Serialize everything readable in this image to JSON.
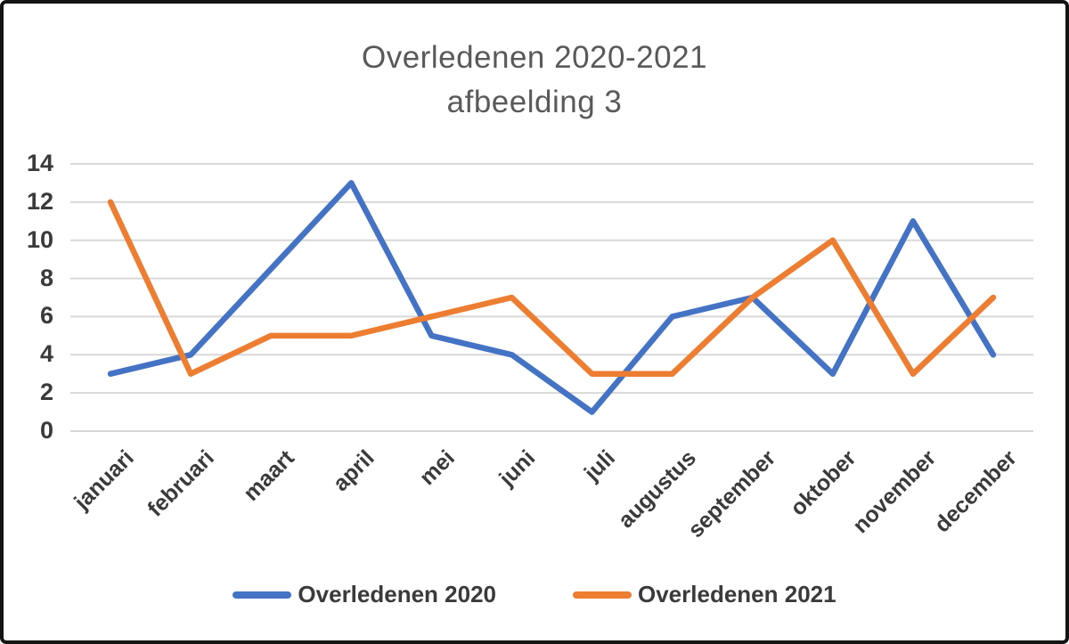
{
  "title": {
    "line1": "Overledenen 2020-2021",
    "line2": "afbeelding 3"
  },
  "chart_data": {
    "type": "line",
    "title_lines": [
      "Overledenen 2020-2021",
      "afbeelding 3"
    ],
    "categories": [
      "januari",
      "februari",
      "maart",
      "april",
      "mei",
      "juni",
      "juli",
      "augustus",
      "september",
      "oktober",
      "november",
      "december"
    ],
    "series": [
      {
        "name": "Overledenen 2020",
        "color": "#4472C4",
        "values": [
          3,
          4,
          8.5,
          13,
          5,
          4,
          1,
          6,
          7,
          3,
          11,
          4
        ]
      },
      {
        "name": "Overledenen 2021",
        "color": "#ED7D31",
        "values": [
          12,
          3,
          5,
          5,
          6,
          7,
          3,
          3,
          7,
          10,
          3,
          7
        ]
      }
    ],
    "xlabel": "",
    "ylabel": "",
    "ylim": [
      0,
      14
    ],
    "yticks": [
      0,
      2,
      4,
      6,
      8,
      10,
      12,
      14
    ],
    "grid": true,
    "gridline_color": "#D8D8D8",
    "axis_text_color": "#3a3a3a",
    "title_color": "#595959",
    "legend_position": "bottom"
  }
}
